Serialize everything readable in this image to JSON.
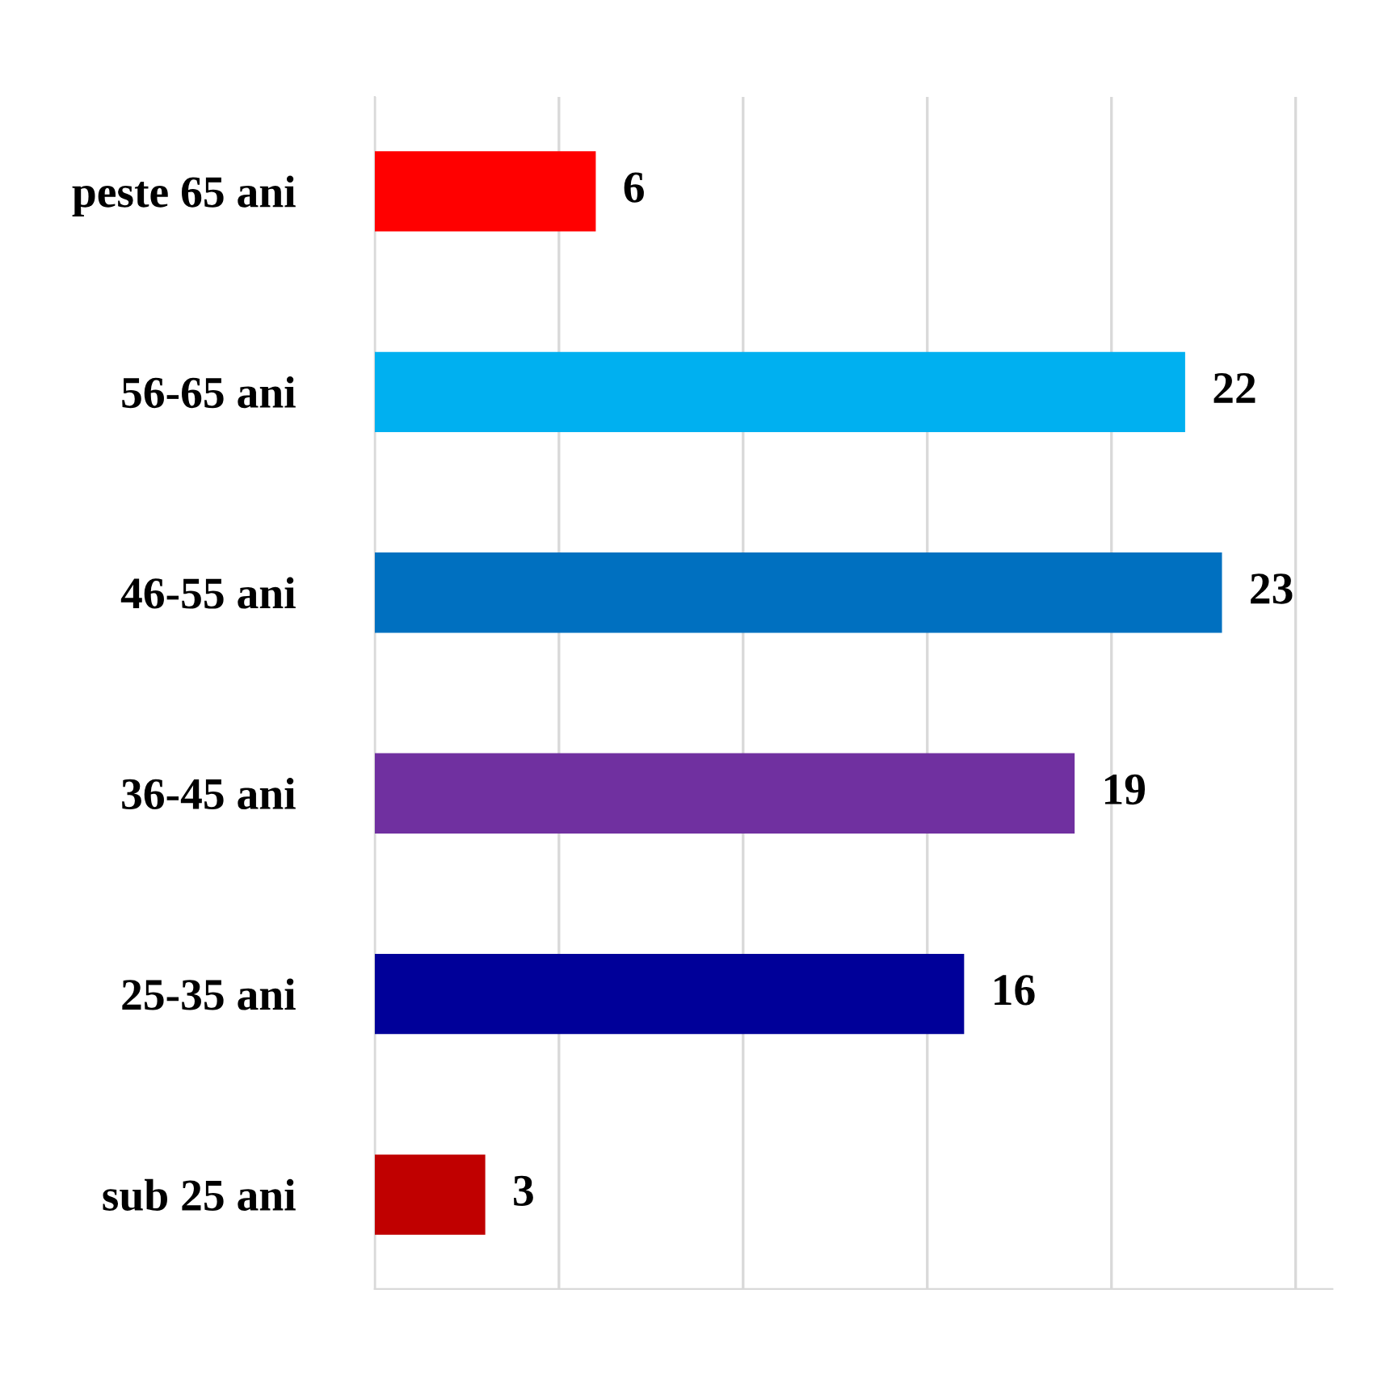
{
  "chart_data": {
    "type": "bar",
    "orientation": "horizontal",
    "categories": [
      "peste 65 ani",
      "56-65 ani",
      "46-55 ani",
      "36-45 ani",
      "25-35 ani",
      "sub 25 ani"
    ],
    "values": [
      6,
      22,
      23,
      19,
      16,
      3
    ],
    "colors": [
      "#ff0000",
      "#00b0f0",
      "#0070c0",
      "#7030a0",
      "#000099",
      "#c00000"
    ],
    "xlim": [
      0,
      26
    ],
    "xticks": [
      {
        "value": 0,
        "label": null
      },
      {
        "value": 5,
        "label": null
      },
      {
        "value": 10,
        "label": null
      },
      {
        "value": 15,
        "label": null
      },
      {
        "value": 20,
        "label": null
      },
      {
        "value": 25,
        "label": null
      }
    ],
    "grid": "x",
    "tick_labels": "y",
    "data_labels": true
  }
}
